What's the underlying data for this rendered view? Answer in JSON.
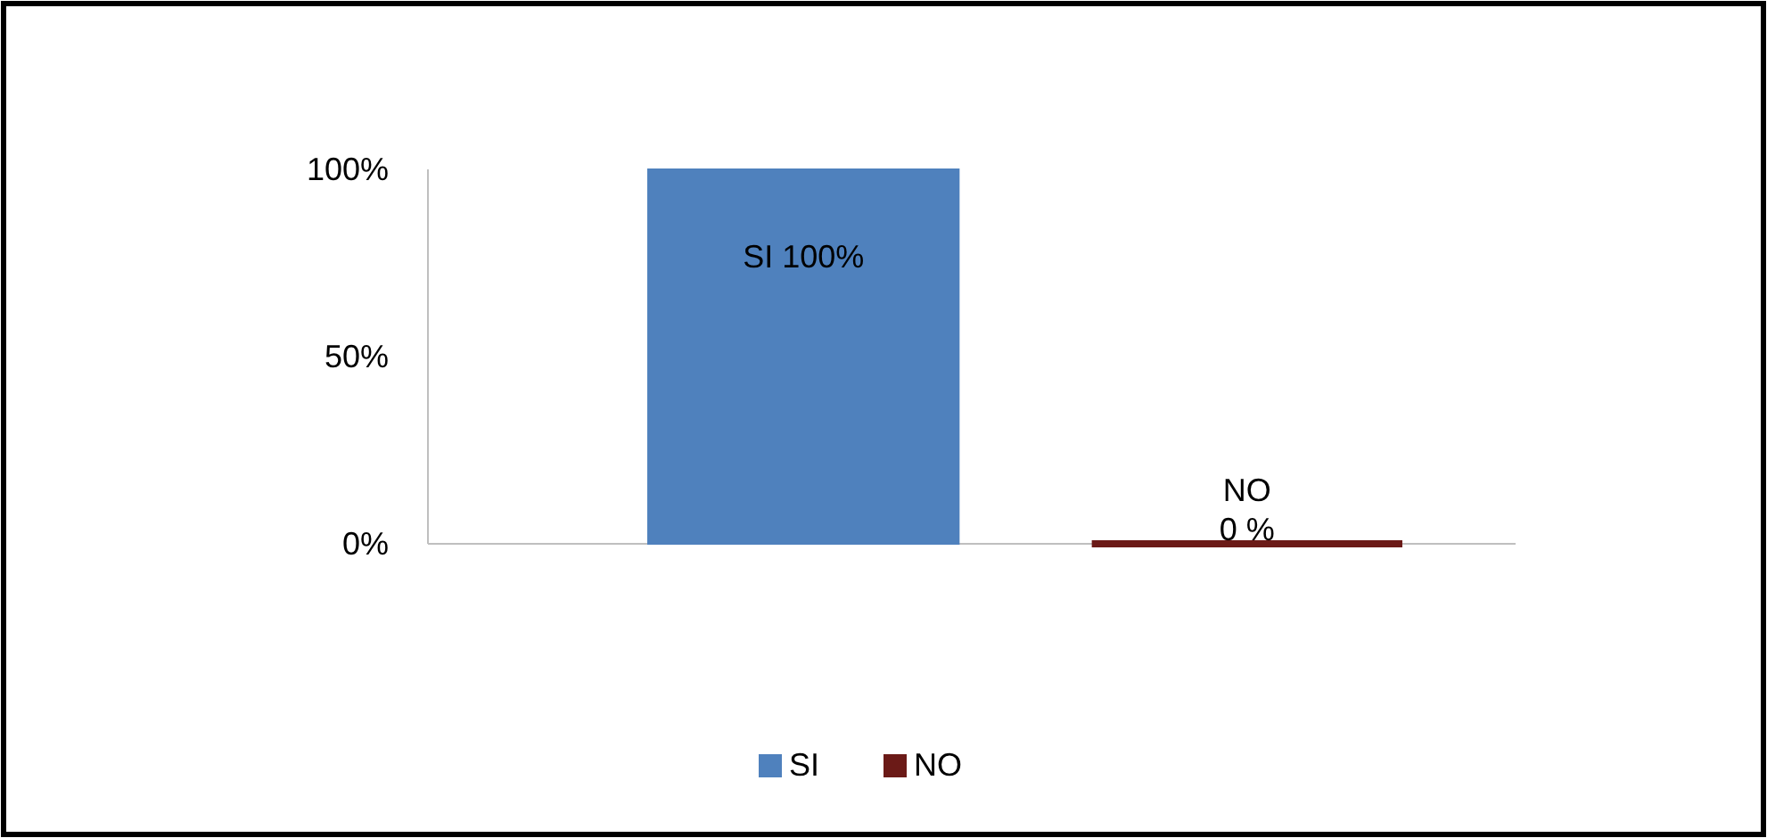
{
  "chart_data": {
    "type": "bar",
    "categories": [
      null
    ],
    "series": [
      {
        "name": "SI",
        "color": "#4f81bd",
        "values": [
          100
        ],
        "value_labels": [
          "SI 100%"
        ]
      },
      {
        "name": "NO",
        "color": "#6b1a17",
        "values": [
          0
        ],
        "value_labels": [
          "NO\n0 %"
        ]
      }
    ],
    "ylim": [
      0,
      100
    ],
    "yticks": [
      {
        "value": 0,
        "label": "0%"
      },
      {
        "value": 50,
        "label": "50%"
      },
      {
        "value": 100,
        "label": "100%"
      }
    ],
    "legend": "bottom"
  }
}
